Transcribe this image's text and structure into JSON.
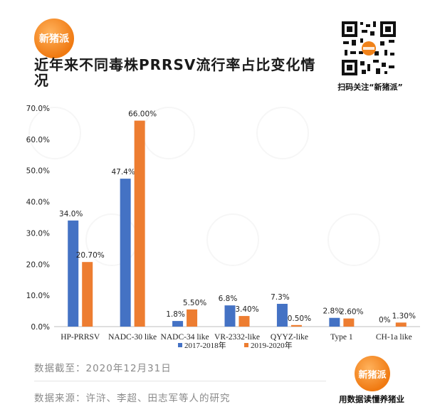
{
  "brand": {
    "logo_text": "新猪派",
    "qr_caption": "扫码关注“新猪派”",
    "slogan": "用数据读懂养猪业"
  },
  "title": "近年来不同毒株PRRSV流行率占比变化情况",
  "footer": {
    "date_line": "数据截至：2020年12月31日",
    "source_line": "数据来源：许浒、李超、田志军等人的研究"
  },
  "colors": {
    "series_1": "#4472C4",
    "series_2": "#ED7D31"
  },
  "chart_data": {
    "type": "bar",
    "categories": [
      "HP-PRRSV",
      "NADC-30 like",
      "NADC-34 like",
      "VR-2332-like",
      "QYYZ-like",
      "Type 1",
      "CH-1a like"
    ],
    "series": [
      {
        "name": "2017-2018年",
        "values": [
          34.0,
          47.4,
          1.8,
          6.8,
          7.3,
          2.8,
          0
        ],
        "labels": [
          "34.0%",
          "47.4%",
          "1.8%",
          "6.8%",
          "7.3%",
          "2.8%",
          "0%"
        ]
      },
      {
        "name": "2019-2020年",
        "values": [
          20.7,
          66.0,
          5.5,
          3.4,
          0.5,
          2.6,
          1.3
        ],
        "labels": [
          "20.70%",
          "66.00%",
          "5.50%",
          "3.40%",
          "0.50%",
          "2.60%",
          "1.30%"
        ]
      }
    ],
    "ylim": [
      0,
      70
    ],
    "yticks": [
      "0.0%",
      "10.0%",
      "20.0%",
      "30.0%",
      "40.0%",
      "50.0%",
      "60.0%",
      "70.0%"
    ],
    "grid": false,
    "legend": "bottom"
  }
}
